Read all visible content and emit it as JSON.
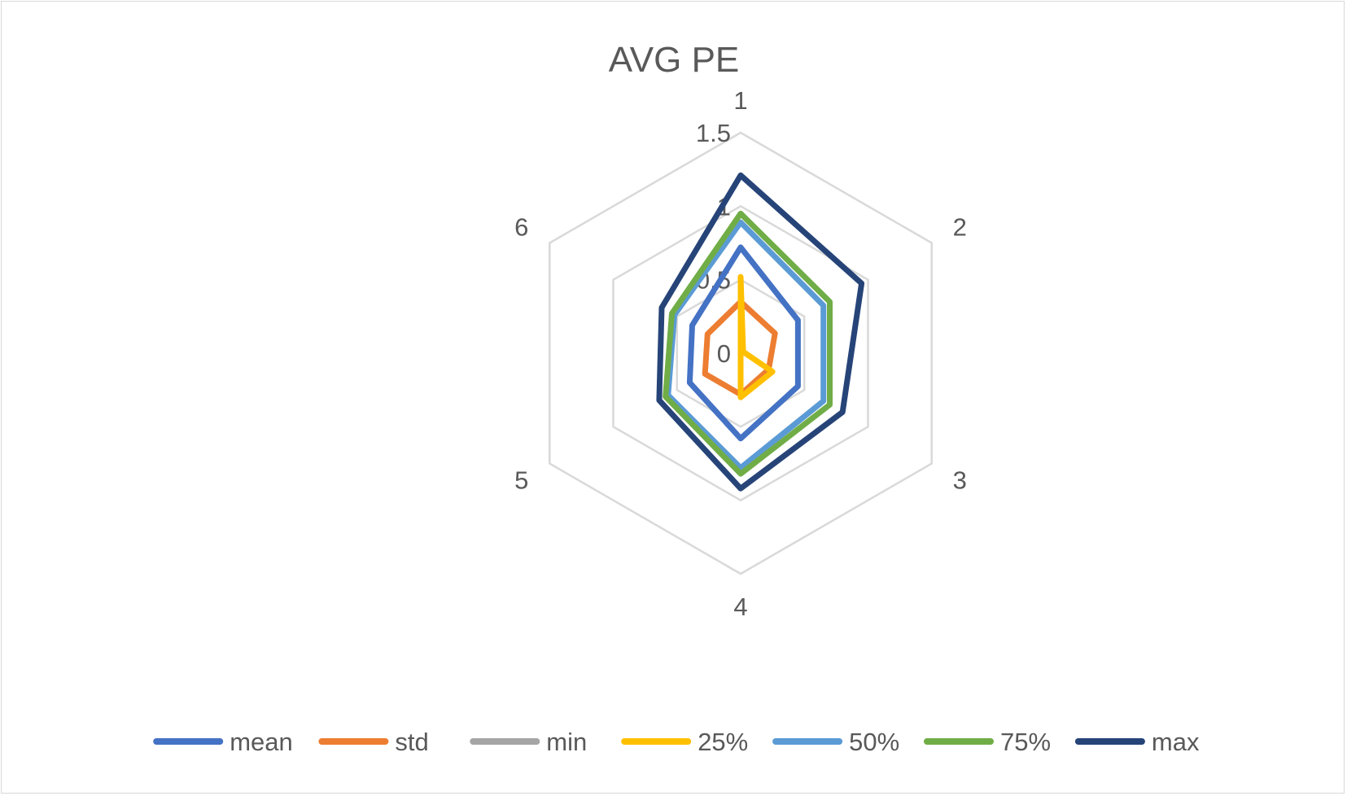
{
  "chart_data": {
    "type": "radar",
    "title": "AVG PE",
    "categories": [
      "1",
      "2",
      "3",
      "4",
      "5",
      "6"
    ],
    "rlim": [
      0,
      1.5
    ],
    "ticks": [
      "0",
      "0.5",
      "1",
      "1.5"
    ],
    "tick_values": [
      0,
      0.5,
      1,
      1.5
    ],
    "grid": true,
    "legend_position": "bottom",
    "series": [
      {
        "name": "mean",
        "color": "#4472C4",
        "values": [
          0.72,
          0.45,
          0.45,
          0.58,
          0.4,
          0.38
        ]
      },
      {
        "name": "std",
        "color": "#ED7D31",
        "values": [
          0.35,
          0.27,
          0.22,
          0.28,
          0.28,
          0.26
        ]
      },
      {
        "name": "min",
        "color": "#A5A5A5",
        "values": [
          0.0,
          0.0,
          0.0,
          0.0,
          0.0,
          0.0
        ]
      },
      {
        "name": "25%",
        "color": "#FFC000",
        "values": [
          0.52,
          0.02,
          0.25,
          0.3,
          0.0,
          0.0
        ]
      },
      {
        "name": "50%",
        "color": "#5B9BD5",
        "values": [
          0.89,
          0.65,
          0.65,
          0.78,
          0.57,
          0.52
        ]
      },
      {
        "name": "75%",
        "color": "#70AD47",
        "values": [
          0.95,
          0.7,
          0.7,
          0.82,
          0.59,
          0.54
        ]
      },
      {
        "name": "max",
        "color": "#264478",
        "values": [
          1.21,
          0.95,
          0.8,
          0.92,
          0.64,
          0.62
        ]
      }
    ]
  }
}
